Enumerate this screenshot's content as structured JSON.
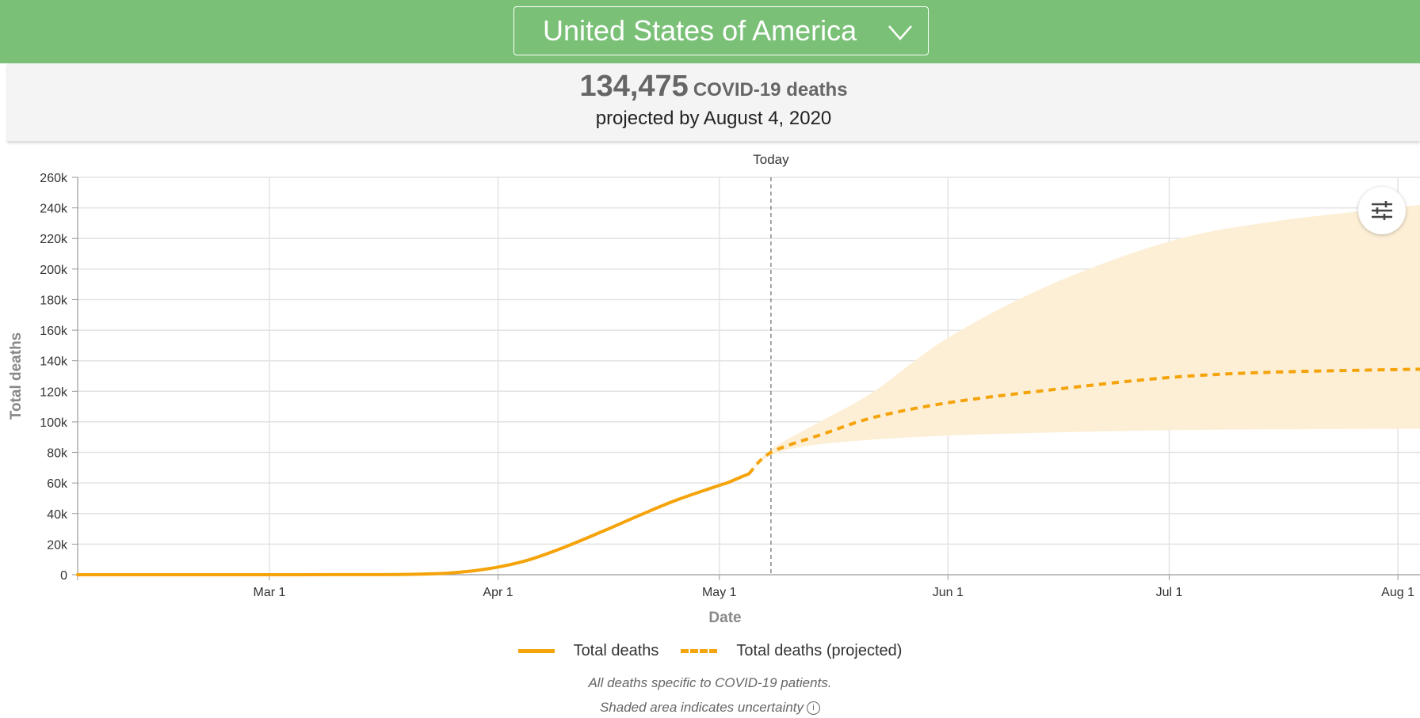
{
  "header": {
    "location": "United States of America",
    "dropdown_icon": "chevron-down-icon"
  },
  "summary": {
    "deaths_value": "134,475",
    "deaths_label": "COVID-19 deaths",
    "projection_text": "projected by August 4, 2020"
  },
  "colors": {
    "header_bg": "#7ac177",
    "line": "#f5a30a",
    "uncertainty_band": "#fdefd6"
  },
  "settings_icon": "sliders-icon",
  "chart_data": {
    "type": "line",
    "title": "",
    "xlabel": "Date",
    "ylabel": "Total deaths",
    "x_range": [
      "2020-02-04",
      "2020-08-04"
    ],
    "ylim": [
      0,
      260000
    ],
    "y_ticks": [
      0,
      20000,
      40000,
      60000,
      80000,
      100000,
      120000,
      140000,
      160000,
      180000,
      200000,
      220000,
      240000,
      260000
    ],
    "y_tick_labels": [
      "0",
      "20k",
      "40k",
      "60k",
      "80k",
      "100k",
      "120k",
      "140k",
      "160k",
      "180k",
      "200k",
      "220k",
      "240k",
      "260k"
    ],
    "x_ticks": [
      {
        "date": "2020-03-01",
        "label": "Mar 1"
      },
      {
        "date": "2020-04-01",
        "label": "Apr 1"
      },
      {
        "date": "2020-05-01",
        "label": "May 1"
      },
      {
        "date": "2020-06-01",
        "label": "Jun 1"
      },
      {
        "date": "2020-07-01",
        "label": "Jul 1"
      },
      {
        "date": "2020-08-01",
        "label": "Aug 1"
      }
    ],
    "today": {
      "date": "2020-05-08",
      "label": "Today"
    },
    "grid": true,
    "legend_position": "bottom-center",
    "series": [
      {
        "name": "Total deaths",
        "style": "solid",
        "points": [
          [
            "2020-02-04",
            0
          ],
          [
            "2020-02-15",
            0
          ],
          [
            "2020-03-01",
            2
          ],
          [
            "2020-03-10",
            30
          ],
          [
            "2020-03-15",
            70
          ],
          [
            "2020-03-20",
            250
          ],
          [
            "2020-03-25",
            1000
          ],
          [
            "2020-03-28",
            2200
          ],
          [
            "2020-04-01",
            5000
          ],
          [
            "2020-04-05",
            9500
          ],
          [
            "2020-04-10",
            18000
          ],
          [
            "2020-04-15",
            28000
          ],
          [
            "2020-04-20",
            38500
          ],
          [
            "2020-04-25",
            48500
          ],
          [
            "2020-05-01",
            58500
          ],
          [
            "2020-05-02",
            60000
          ],
          [
            "2020-05-04",
            64000
          ],
          [
            "2020-05-05",
            66000
          ]
        ]
      },
      {
        "name": "Total deaths (projected)",
        "style": "dashed",
        "points": [
          [
            "2020-05-05",
            66000
          ],
          [
            "2020-05-08",
            80000
          ],
          [
            "2020-05-15",
            92000
          ],
          [
            "2020-05-22",
            103000
          ],
          [
            "2020-06-01",
            112500
          ],
          [
            "2020-06-15",
            121000
          ],
          [
            "2020-07-01",
            129000
          ],
          [
            "2020-07-15",
            132500
          ],
          [
            "2020-08-04",
            134475
          ]
        ]
      }
    ],
    "uncertainty": {
      "lower": [
        [
          "2020-05-05",
          66000
        ],
        [
          "2020-05-08",
          78000
        ],
        [
          "2020-05-15",
          85500
        ],
        [
          "2020-06-01",
          91000
        ],
        [
          "2020-07-01",
          94500
        ],
        [
          "2020-08-04",
          95500
        ]
      ],
      "upper": [
        [
          "2020-05-05",
          66000
        ],
        [
          "2020-05-08",
          82000
        ],
        [
          "2020-05-15",
          101000
        ],
        [
          "2020-05-22",
          120000
        ],
        [
          "2020-06-01",
          155000
        ],
        [
          "2020-06-15",
          190000
        ],
        [
          "2020-07-01",
          218000
        ],
        [
          "2020-07-15",
          231000
        ],
        [
          "2020-08-04",
          242000
        ]
      ]
    }
  },
  "footnotes": {
    "line1": "All deaths specific to COVID-19 patients.",
    "line2": "Shaded area indicates uncertainty",
    "info_icon": "info-icon",
    "info_glyph": "i"
  }
}
